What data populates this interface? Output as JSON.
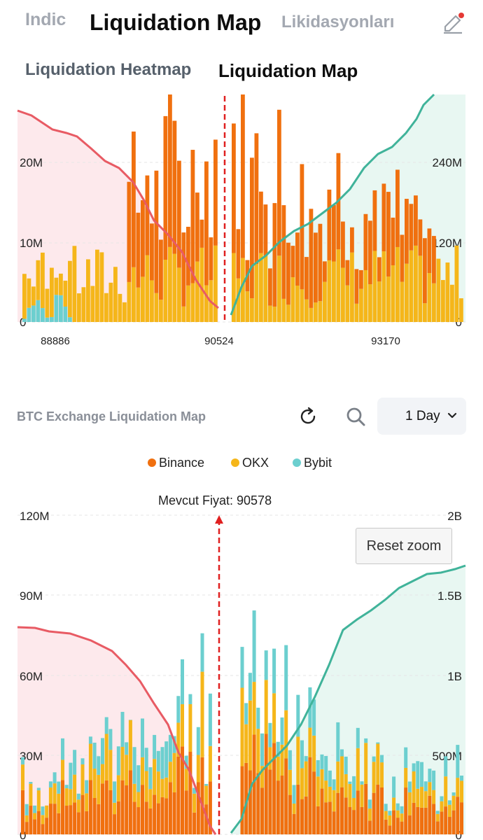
{
  "nav": {
    "tabs": [
      "Indic",
      "Liquidation Map",
      "Likidasyonları"
    ],
    "active_tab": "Liquidation Map",
    "edit_icon": "edit-pencil-icon",
    "notification_color": "#e53935"
  },
  "subnav": {
    "tabs": [
      "Liquidation Heatmap",
      "Liquidation Map"
    ],
    "active": "Liquidation Map"
  },
  "colors": {
    "binance": "#f0700f",
    "okx": "#f5b61a",
    "bybit": "#6ccfcf",
    "short_cumulative": "#e85b64",
    "long_cumulative": "#40b39a",
    "current_price": "#e02020"
  },
  "chart_top": {
    "type": "bar",
    "left_axis_ticks": [
      "0",
      "10M",
      "20M"
    ],
    "right_axis_ticks": [
      "0",
      "120M",
      "240M"
    ],
    "x_tick_labels": [
      "88886",
      "90524",
      "93170"
    ],
    "ylim_left": [
      0,
      28000000
    ],
    "ylim_right": [
      0,
      280000000
    ]
  },
  "card": {
    "title": "BTC Exchange Liquidation Map",
    "refresh_icon": "refresh-icon",
    "search_icon": "search-icon",
    "range_value": "1 Day",
    "chevron_icon": "chevron-down-icon"
  },
  "legend": {
    "items": [
      {
        "name": "Binance",
        "color": "#f0700f"
      },
      {
        "name": "OKX",
        "color": "#f5b61a"
      },
      {
        "name": "Bybit",
        "color": "#6ccfcf"
      }
    ]
  },
  "chart_data": {
    "type": "bar",
    "current_price_label": "Mevcut Fiyat: 90578",
    "reset_zoom_label": "Reset zoom",
    "left_axis_ticks": [
      "0",
      "30M",
      "60M",
      "90M",
      "120M"
    ],
    "right_axis_ticks": [
      "0",
      "500M",
      "1B",
      "1.5B",
      "2B"
    ],
    "ylim_left": [
      0,
      120000000
    ],
    "ylim_right": [
      0,
      2000000000
    ],
    "series": [
      {
        "name": "Binance"
      },
      {
        "name": "OKX"
      },
      {
        "name": "Bybit"
      }
    ]
  }
}
